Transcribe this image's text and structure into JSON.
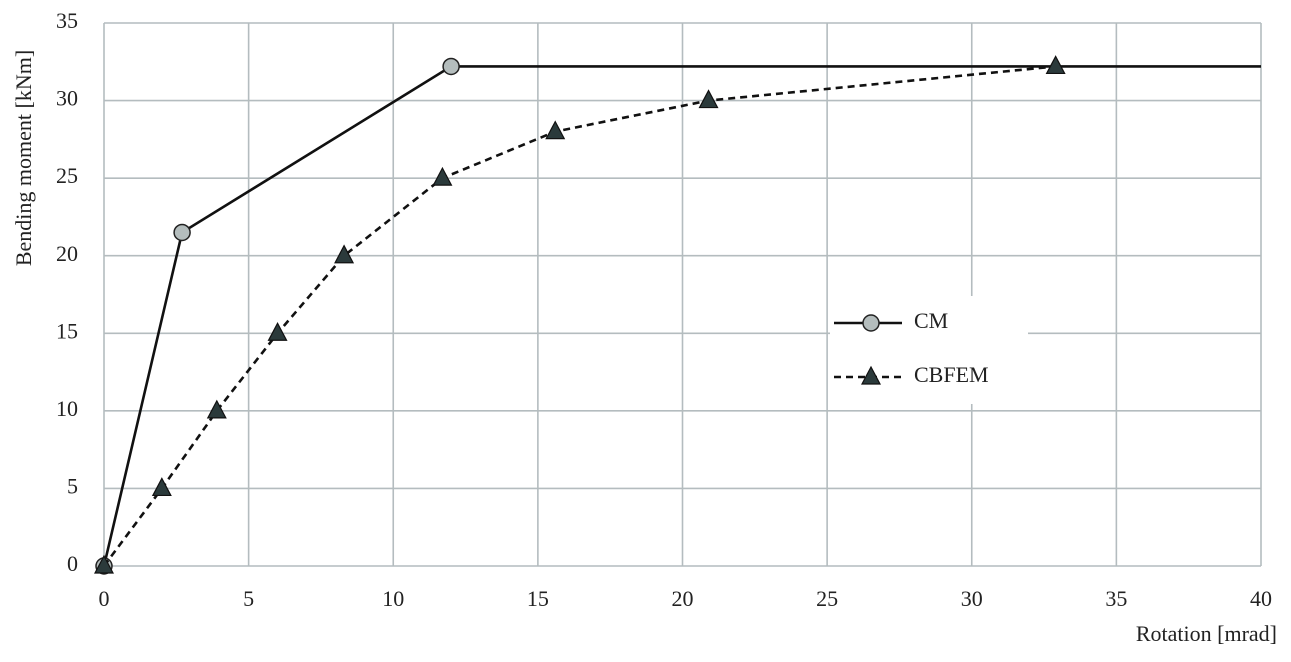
{
  "chart_data": {
    "type": "line",
    "x_label": "Rotation [mrad]",
    "y_label": "Bending moment [kNm]",
    "xlim": [
      0,
      40
    ],
    "xticks": [
      0,
      5,
      10,
      15,
      20,
      25,
      30,
      35,
      40
    ],
    "ylim": [
      0,
      35
    ],
    "yticks": [
      0,
      5,
      10,
      15,
      20,
      25,
      30,
      35
    ],
    "grid": true,
    "legend": "right",
    "series": [
      {
        "name": "CM",
        "color": "#b4bdbd",
        "line": "solid",
        "marker": "circle",
        "x": [
          0,
          2.7,
          12,
          40
        ],
        "values": [
          0,
          21.5,
          32.2,
          32.2
        ]
      },
      {
        "name": "CBFEM",
        "color": "#2b3a3b",
        "line": "dashed",
        "marker": "triangle",
        "x": [
          0,
          2,
          3.9,
          6,
          8.3,
          11.7,
          15.6,
          20.9,
          32.9
        ],
        "values": [
          0,
          5,
          10,
          15,
          20,
          25,
          28,
          30,
          32.2
        ]
      }
    ]
  }
}
